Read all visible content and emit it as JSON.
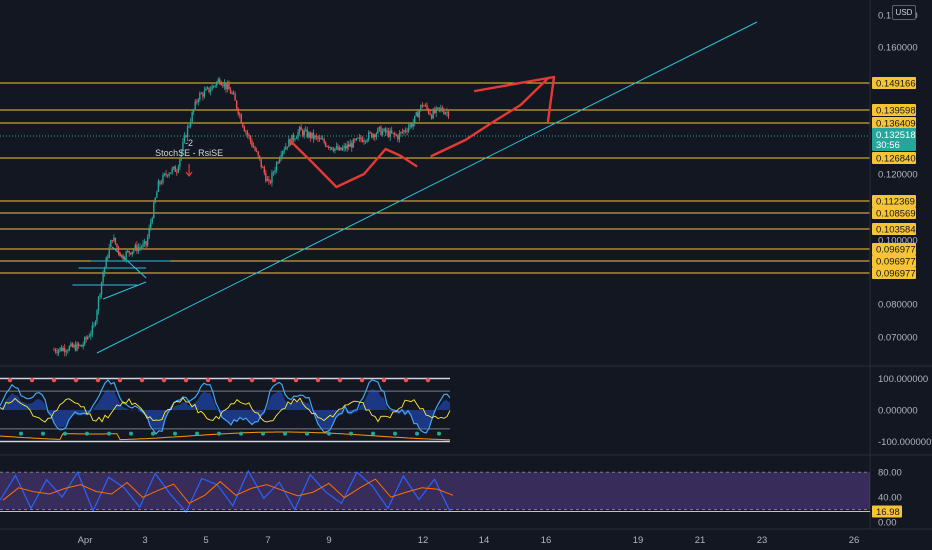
{
  "currency_badge": "USD",
  "annotation": {
    "count": "-2",
    "signal": "StochSE - RsiSE"
  },
  "chart_data": [
    {
      "type": "candlestick",
      "title": "",
      "x_ticks": [
        "Apr",
        "3",
        "5",
        "7",
        "9",
        "12",
        "14",
        "16",
        "19",
        "21",
        "23",
        "26"
      ],
      "y_ticks": [
        0.17,
        0.16,
        0.12,
        0.1,
        0.08,
        0.07
      ],
      "y_tick_labels": [
        "0.170000",
        "0.160000",
        "0.120000",
        "0.100000",
        "0.080000",
        "0.070000"
      ],
      "last_price": {
        "value": 0.132518,
        "label": "0.132518",
        "countdown": "30:56",
        "color": "#26a69a"
      },
      "horizontal_levels": [
        {
          "value": 0.149166,
          "label": "0.149166"
        },
        {
          "value": 0.139598,
          "label": "0.139598"
        },
        {
          "value": 0.136409,
          "label": "0.136409"
        },
        {
          "value": 0.12684,
          "label": "0.126840"
        },
        {
          "value": 0.112369,
          "label": "0.112369"
        },
        {
          "value": 0.108569,
          "label": "0.108569"
        },
        {
          "value": 0.103584,
          "label": "0.103584"
        },
        {
          "value": 0.096977,
          "label": "0.096977"
        },
        {
          "value": 0.096977,
          "label": "0.096977"
        },
        {
          "value": 0.096977,
          "label": "0.096977"
        }
      ],
      "level_color": "#f7c433",
      "trendline": {
        "color": "#26c6da",
        "from": {
          "day": 1.4,
          "price": 0.0675
        },
        "to": {
          "day": 23.0,
          "price": 0.171
        }
      },
      "close_path": [
        {
          "day": 0.0,
          "price": 0.0675
        },
        {
          "day": 0.9,
          "price": 0.0682
        },
        {
          "day": 1.3,
          "price": 0.072
        },
        {
          "day": 1.6,
          "price": 0.084
        },
        {
          "day": 1.9,
          "price": 0.093
        },
        {
          "day": 2.2,
          "price": 0.088
        },
        {
          "day": 2.6,
          "price": 0.09
        },
        {
          "day": 3.0,
          "price": 0.091
        },
        {
          "day": 3.1,
          "price": 0.095
        },
        {
          "day": 3.4,
          "price": 0.108
        },
        {
          "day": 3.7,
          "price": 0.112
        },
        {
          "day": 4.0,
          "price": 0.113
        },
        {
          "day": 4.3,
          "price": 0.125
        },
        {
          "day": 4.7,
          "price": 0.139
        },
        {
          "day": 5.1,
          "price": 0.142
        },
        {
          "day": 5.4,
          "price": 0.146
        },
        {
          "day": 5.8,
          "price": 0.14
        },
        {
          "day": 6.2,
          "price": 0.127
        },
        {
          "day": 6.6,
          "price": 0.118
        },
        {
          "day": 7.0,
          "price": 0.108
        },
        {
          "day": 7.4,
          "price": 0.119
        },
        {
          "day": 8.0,
          "price": 0.126
        },
        {
          "day": 8.6,
          "price": 0.123
        },
        {
          "day": 9.3,
          "price": 0.119
        },
        {
          "day": 10.0,
          "price": 0.123
        },
        {
          "day": 10.6,
          "price": 0.126
        },
        {
          "day": 11.2,
          "price": 0.124
        },
        {
          "day": 11.7,
          "price": 0.129
        },
        {
          "day": 12.0,
          "price": 0.136
        },
        {
          "day": 12.3,
          "price": 0.132
        },
        {
          "day": 12.6,
          "price": 0.134
        },
        {
          "day": 12.9,
          "price": 0.1325
        }
      ],
      "annotation_day": 4.4,
      "drawings": {
        "color": "#e53935",
        "curve": [
          {
            "day": 7.7,
            "price": 0.135
          },
          {
            "day": 8.4,
            "price": 0.128
          },
          {
            "day": 9.2,
            "price": 0.122
          },
          {
            "day": 10.1,
            "price": 0.124
          },
          {
            "day": 10.8,
            "price": 0.133
          },
          {
            "day": 11.3,
            "price": 0.13
          },
          {
            "day": 11.8,
            "price": 0.125
          }
        ],
        "arrow": [
          {
            "day": 12.3,
            "price": 0.127
          },
          {
            "day": 13.4,
            "price": 0.133
          },
          {
            "day": 14.3,
            "price": 0.14
          },
          {
            "day": 15.2,
            "price": 0.146
          },
          {
            "day": 16.1,
            "price": 0.151
          }
        ],
        "arrow_head": [
          {
            "day": 14.6,
            "price": 0.151
          },
          {
            "day": 16.1,
            "price": 0.151
          },
          {
            "day": 16.0,
            "price": 0.139
          }
        ],
        "wedge": {
          "upper": [
            {
              "day": 1.9,
              "price": 0.099
            },
            {
              "day": 3.0,
              "price": 0.093
            }
          ],
          "lower": [
            {
              "day": 1.6,
              "price": 0.088
            },
            {
              "day": 3.0,
              "price": 0.092
            }
          ],
          "guides": [
            {
              "from_day": 1.2,
              "to_day": 3.8,
              "price": 0.096
            },
            {
              "from_day": 0.8,
              "to_day": 3.0,
              "price": 0.094
            },
            {
              "from_day": 0.6,
              "to_day": 2.7,
              "price": 0.09
            }
          ]
        }
      }
    },
    {
      "type": "oscillator",
      "y_ticks": [
        100,
        0,
        -100
      ],
      "y_tick_labels": [
        "100.000000",
        "0.000000",
        "-100.000000"
      ],
      "ylim": [
        -110,
        110
      ]
    },
    {
      "type": "line",
      "series": [
        {
          "values": [
            35,
            75,
            22,
            68,
            40,
            80,
            18,
            72,
            55,
            24,
            78,
            44,
            16,
            70,
            60,
            26,
            82,
            38,
            64,
            20,
            76,
            48,
            30,
            80,
            58,
            22,
            74,
            36,
            69,
            17
          ]
        }
      ],
      "y_ticks": [
        80,
        40,
        0
      ],
      "y_tick_labels": [
        "80.00",
        "40.00",
        "0.00"
      ],
      "band": [
        20,
        80
      ],
      "last_value": {
        "value": 16.98,
        "label": "16.98"
      },
      "ylim": [
        -5,
        100
      ]
    }
  ]
}
